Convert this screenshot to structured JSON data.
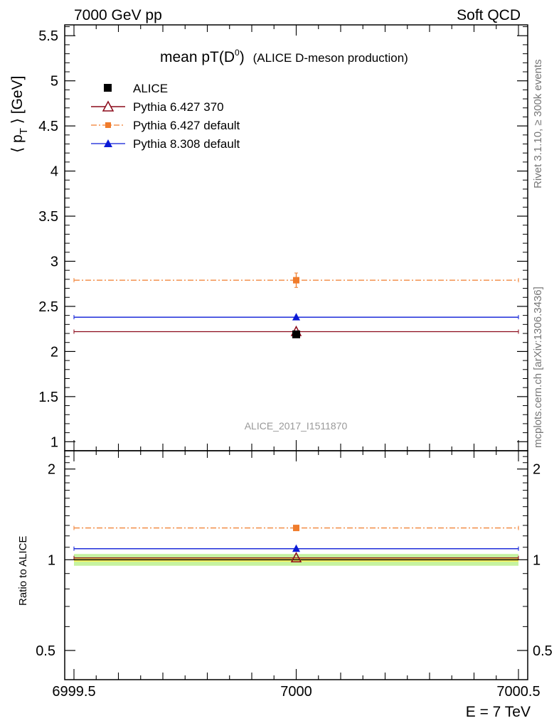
{
  "header": {
    "left": "7000 GeV pp",
    "right": "Soft QCD"
  },
  "side_labels": {
    "rivet": "Rivet 3.1.10, ≥ 300k events",
    "mcplots": "mcplots.cern.ch [arXiv:1306.3436]"
  },
  "chart_data": [
    {
      "type": "scatter",
      "title_main": "mean pT(D",
      "title_sup": "0",
      "title_close": ")",
      "title_tail": "(ALICE D-meson production)",
      "ylabel": "⟨ p",
      "ylabel_sub": "T",
      "ylabel_tail": " ⟩ [GeV]",
      "watermark": "ALICE_2017_I1511870",
      "xlim": [
        6999.5,
        7000.5
      ],
      "ylim": [
        0.9,
        5.62
      ],
      "yticks": [
        1,
        1.5,
        2,
        2.5,
        3,
        3.5,
        4,
        4.5,
        5,
        5.5
      ],
      "ytick_labels": [
        "1",
        "1.5",
        "2",
        "2.5",
        "3",
        "3.5",
        "4",
        "4.5",
        "5",
        "5.5"
      ],
      "legend_position": "top-left",
      "series": [
        {
          "name": "ALICE",
          "x": [
            7000
          ],
          "y": [
            2.19
          ],
          "err": [
            0.02
          ],
          "color": "#000000",
          "marker": "square-filled",
          "line": "none"
        },
        {
          "name": "Pythia 6.427 370",
          "x": [
            7000
          ],
          "y": [
            2.22
          ],
          "err": [
            0.0
          ],
          "color": "#8b0a1a",
          "marker": "triangle-open",
          "line": "solid"
        },
        {
          "name": "Pythia 6.427 default",
          "x": [
            7000
          ],
          "y": [
            2.79
          ],
          "err": [
            0.08
          ],
          "color": "#f07c2c",
          "marker": "square-filled",
          "line": "dashdot"
        },
        {
          "name": "Pythia 8.308 default",
          "x": [
            7000
          ],
          "y": [
            2.38
          ],
          "err": [
            0.0
          ],
          "color": "#0a1ad6",
          "marker": "triangle-filled",
          "line": "solid"
        }
      ]
    },
    {
      "type": "scatter",
      "ylabel": "Ratio to ALICE",
      "xlabel": "E = 7 TeV",
      "xlim": [
        6999.5,
        7000.5
      ],
      "ylim": [
        0.4,
        2.3
      ],
      "yscale": "log",
      "yticks": [
        0.5,
        1,
        2
      ],
      "ytick_labels": [
        "0.5",
        "1",
        "2"
      ],
      "xticks": [
        6999.5,
        7000,
        7000.5
      ],
      "xtick_labels": [
        "6999.5",
        "7000",
        "7000.5"
      ],
      "band": {
        "inner": [
          0.985,
          1.015
        ],
        "outer": [
          0.955,
          1.045
        ],
        "inner_color": "#f7f560",
        "outer_color": "#c6f3a0"
      },
      "series": [
        {
          "name": "Pythia 6.427 370",
          "x": [
            7000
          ],
          "y": [
            1.014
          ],
          "err": [
            0.0
          ],
          "color": "#8b0a1a",
          "marker": "triangle-open",
          "line": "solid"
        },
        {
          "name": "Pythia 6.427 default",
          "x": [
            7000
          ],
          "y": [
            1.275
          ],
          "err": [
            0.025
          ],
          "color": "#f07c2c",
          "marker": "square-filled",
          "line": "dashdot"
        },
        {
          "name": "Pythia 8.308 default",
          "x": [
            7000
          ],
          "y": [
            1.088
          ],
          "err": [
            0.0
          ],
          "color": "#0a1ad6",
          "marker": "triangle-filled",
          "line": "solid"
        }
      ]
    }
  ]
}
